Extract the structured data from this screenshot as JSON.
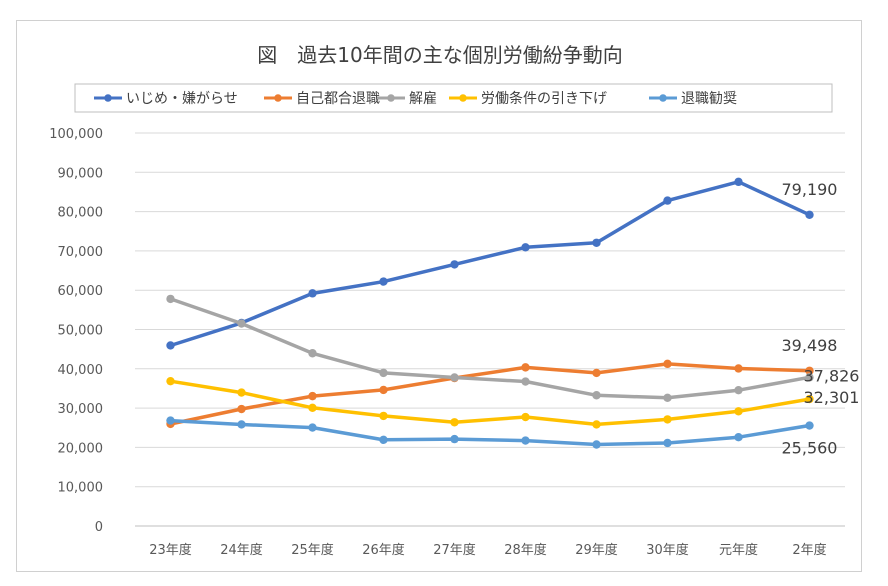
{
  "chart_data": {
    "type": "line",
    "title": "図　過去10年間の主な個別労働紛争動向",
    "categories": [
      "23年度",
      "24年度",
      "25年度",
      "26年度",
      "27年度",
      "28年度",
      "29年度",
      "30年度",
      "元年度",
      "2年度"
    ],
    "ylim": [
      0,
      100000
    ],
    "yticks": [
      "0",
      "10,000",
      "20,000",
      "30,000",
      "40,000",
      "50,000",
      "60,000",
      "70,000",
      "80,000",
      "90,000",
      "100,000"
    ],
    "grid": true,
    "legend_position": "top",
    "series": [
      {
        "name": "いじめ・嫌がらせ",
        "color": "#4472C4",
        "values": [
          45939,
          51670,
          59197,
          62191,
          66566,
          70917,
          72067,
          82797,
          87570,
          79190
        ],
        "end_label": "79,190"
      },
      {
        "name": "自己都合退職",
        "color": "#ED7D31",
        "values": [
          25966,
          29763,
          33049,
          34626,
          37648,
          40364,
          38954,
          41258,
          40081,
          39498
        ],
        "end_label": "39,498"
      },
      {
        "name": "解雇",
        "color": "#A5A5A5",
        "values": [
          57785,
          51515,
          43956,
          38966,
          37787,
          36760,
          33269,
          32614,
          34561,
          37826
        ],
        "end_label": "37,826"
      },
      {
        "name": "労働条件の引き下げ",
        "color": "#FFC000",
        "values": [
          36849,
          33955,
          30067,
          28015,
          26392,
          27723,
          25841,
          27124,
          29186,
          32301
        ],
        "end_label": "32,301"
      },
      {
        "name": "退職勧奨",
        "color": "#5B9BD5",
        "values": [
          26828,
          25838,
          25041,
          21928,
          22110,
          21736,
          20736,
          21125,
          22592,
          25560
        ],
        "end_label": "25,560"
      }
    ]
  }
}
